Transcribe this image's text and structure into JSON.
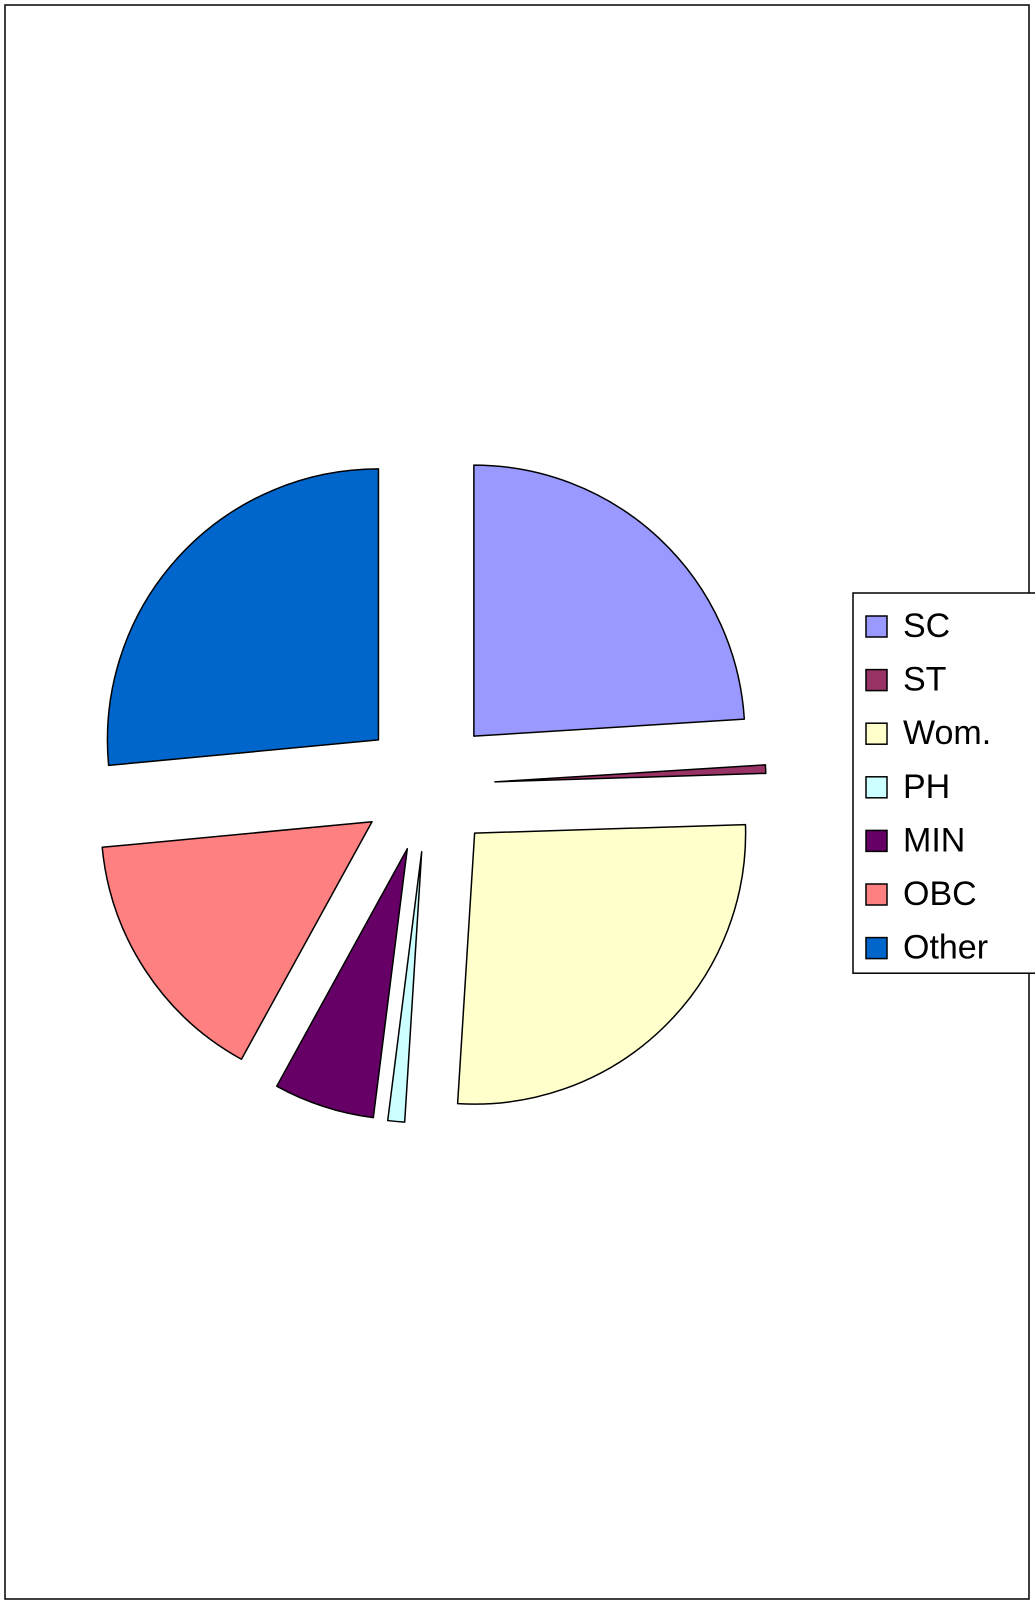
{
  "chart_data": {
    "type": "pie",
    "categories": [
      "SC",
      "ST",
      "Wom.",
      "PH",
      "MIN",
      "OBC",
      "Other"
    ],
    "values": [
      24,
      0.5,
      26.5,
      1,
      6,
      15.5,
      26.5
    ],
    "colors": [
      "#9999ff",
      "#993366",
      "#ffffcc",
      "#ccffff",
      "#660066",
      "#ff8080",
      "#0066cc"
    ],
    "legend": "right"
  }
}
